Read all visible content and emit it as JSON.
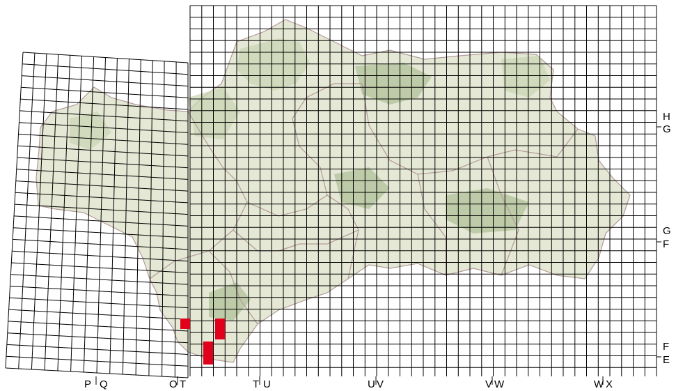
{
  "map": {
    "colors": {
      "background": "#ffffff",
      "grid": "#000000",
      "land": "#e4e8d4",
      "land_mid": "#c9d4b2",
      "land_dark": "#aebf96",
      "borders": "#b39a9a",
      "highlight": "#e0001b"
    },
    "labels": {
      "bottom": [
        "P",
        "Q",
        "O",
        "T",
        "T",
        "U",
        "U",
        "V",
        "V",
        "W",
        "W",
        "X"
      ],
      "right": [
        "H",
        "G",
        "G",
        "F",
        "F",
        "E"
      ]
    }
  }
}
